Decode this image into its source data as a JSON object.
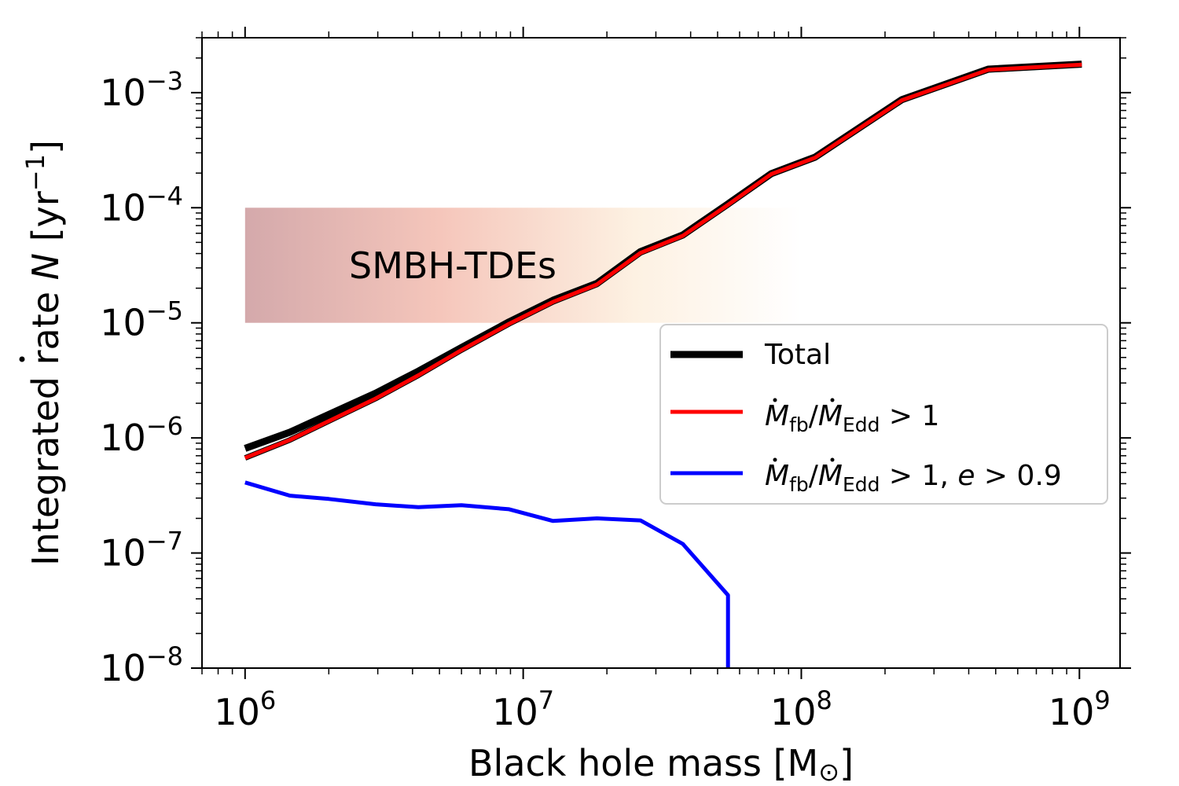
{
  "chart_data": {
    "type": "line",
    "xscale": "log",
    "yscale": "log",
    "xlim": [
      700000,
      1400000000
    ],
    "ylim": [
      1e-08,
      0.003
    ],
    "xlabel": "Black hole mass [M⊙]",
    "ylabel": "Integrated rate Ṅ [yr⁻¹]",
    "xticks": [
      {
        "value": 1000000,
        "base": "10",
        "exp": "6"
      },
      {
        "value": 10000000,
        "base": "10",
        "exp": "7"
      },
      {
        "value": 100000000,
        "base": "10",
        "exp": "8"
      },
      {
        "value": 1000000000,
        "base": "10",
        "exp": "9"
      }
    ],
    "yticks": [
      {
        "value": 1e-08,
        "base": "10",
        "exp": "−8"
      },
      {
        "value": 1e-07,
        "base": "10",
        "exp": "−7"
      },
      {
        "value": 1e-06,
        "base": "10",
        "exp": "−6"
      },
      {
        "value": 1e-05,
        "base": "10",
        "exp": "−5"
      },
      {
        "value": 0.0001,
        "base": "10",
        "exp": "−4"
      },
      {
        "value": 0.001,
        "base": "10",
        "exp": "−3"
      }
    ],
    "band": {
      "label": "SMBH-TDEs",
      "x_range": [
        1000000,
        100000000
      ],
      "y_range": [
        1e-05,
        0.0001
      ],
      "colors": [
        "#d4a9ab",
        "#f5c6bb",
        "#fdf1e2",
        "#ffffff"
      ]
    },
    "series": [
      {
        "name": "Total",
        "color": "#000000",
        "x": [
          1000000,
          1450000,
          2000000,
          2950000,
          4200000,
          6000000,
          8900000,
          12800000,
          18400000,
          26400000,
          37500000,
          54500000,
          78000000,
          112000000,
          230000000,
          470000000,
          1020000000
        ],
        "y": [
          8.1e-07,
          1.12e-06,
          1.6e-06,
          2.45e-06,
          3.8e-06,
          6.1e-06,
          1.02e-05,
          1.57e-05,
          2.2e-05,
          4.15e-05,
          5.8e-05,
          0.000108,
          0.000198,
          0.000275,
          0.00087,
          0.0016,
          0.00177
        ]
      },
      {
        "name": "fb_edd_gt1",
        "color": "#ff0000",
        "x": [
          1000000,
          1450000,
          2000000,
          2950000,
          4200000,
          6000000,
          8900000,
          12800000,
          18400000,
          26400000,
          37500000,
          54500000,
          78000000,
          112000000,
          230000000,
          470000000,
          1020000000
        ],
        "y": [
          6.7e-07,
          9.6e-07,
          1.4e-06,
          2.2e-06,
          3.5e-06,
          5.8e-06,
          9.8e-06,
          1.52e-05,
          2.15e-05,
          4.05e-05,
          5.7e-05,
          0.000106,
          0.000196,
          0.000272,
          0.00086,
          0.00158,
          0.00175
        ]
      },
      {
        "name": "fb_edd_gt1_ecc",
        "color": "#0000ff",
        "x": [
          1000000,
          1450000,
          2000000,
          2950000,
          4200000,
          6000000,
          8900000,
          12800000,
          18400000,
          26400000,
          37500000,
          54500000,
          54500000
        ],
        "y": [
          4.1e-07,
          3.15e-07,
          2.95e-07,
          2.65e-07,
          2.5e-07,
          2.6e-07,
          2.4e-07,
          1.9e-07,
          2e-07,
          1.92e-07,
          1.2e-07,
          4.3e-08,
          1e-08
        ]
      }
    ],
    "legend": {
      "position": "center-right",
      "entries": [
        {
          "series": "Total",
          "text": "Total"
        },
        {
          "series": "fb_edd_gt1",
          "text": "Ṁfb/ṀEdd > 1"
        },
        {
          "series": "fb_edd_gt1_ecc",
          "text": "Ṁfb/ṀEdd > 1, e > 0.9"
        }
      ]
    }
  },
  "legend_text": {
    "total": "Total",
    "m": "M",
    "fb": "fb",
    "slash": "/",
    "edd": "Edd",
    "gt1": " > 1",
    "gt1_comma": " > 1, ",
    "e": "e",
    "gt09": " > 0.9"
  },
  "labels": {
    "x_prefix": "Black hole mass [M",
    "x_sun": "⊙",
    "x_suffix": "]",
    "y_prefix": "Integrated rate ",
    "y_n": "N",
    "y_unit": " [yr",
    "y_exp": "−1",
    "y_close": "]"
  }
}
